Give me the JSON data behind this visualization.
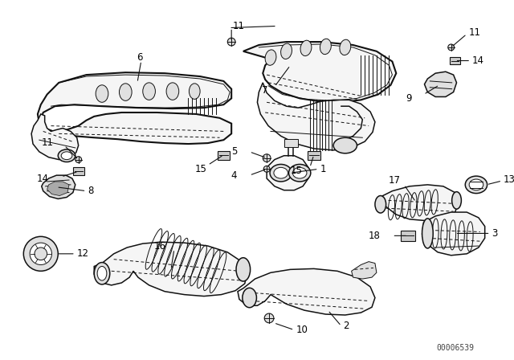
{
  "bg_color": "#ffffff",
  "fig_width": 6.4,
  "fig_height": 4.48,
  "dpi": 100,
  "diagram_color": "#111111",
  "label_color": "#000000",
  "label_fontsize": 8.5,
  "watermark": "00006539",
  "watermark_fontsize": 7
}
